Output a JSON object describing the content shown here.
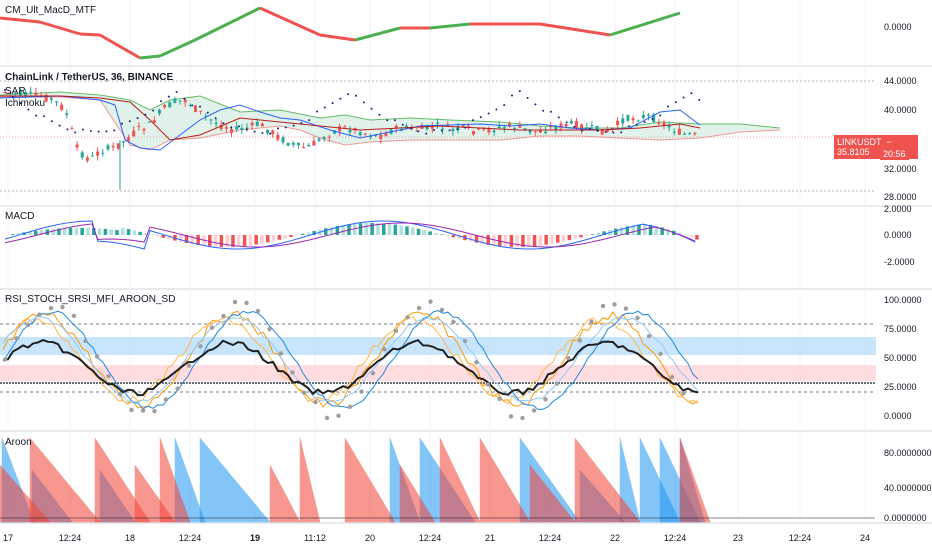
{
  "panes": {
    "top_indicator": {
      "title": "CM_Ult_MacD_MTF",
      "axis_labels": [
        "0.0000"
      ]
    },
    "price": {
      "title": "ChainLink / TetherUS, 36, BINANCE",
      "overlays": [
        "SAR",
        "Ichimoku"
      ],
      "axis_labels": [
        "44.0000",
        "40.0000",
        "32.0000",
        "28.0000"
      ],
      "current_price": {
        "symbol": "LINKUSDT",
        "price": "35.8105",
        "countdown": "20:56"
      }
    },
    "macd": {
      "title": "MACD",
      "axis_labels": [
        "2.0000",
        "0.0000",
        "-2.0000"
      ]
    },
    "rsi": {
      "title": "RSI_STOCH_SRSI_MFI_AROON_SD",
      "axis_labels": [
        "100.0000",
        "75.0000",
        "50.0000",
        "25.0000",
        "0.0000"
      ]
    },
    "aroon": {
      "title": "Aroon",
      "axis_labels": [
        "80.0000000",
        "40.0000000",
        "0.0000000"
      ]
    }
  },
  "time_axis": [
    "17",
    "12:24",
    "18",
    "12:24",
    "19",
    "11:12",
    "20",
    "12:24",
    "21",
    "12:24",
    "22",
    "12:24",
    "23",
    "12:24",
    "24"
  ],
  "colors": {
    "bull": "#26a69a",
    "bear": "#ef5350",
    "green_line": "#4caf50",
    "blue": "#2962ff",
    "purple": "#9c27b0",
    "orange": "#ff9800",
    "aroon_up": "#2196f3",
    "aroon_down": "#f44336"
  }
}
